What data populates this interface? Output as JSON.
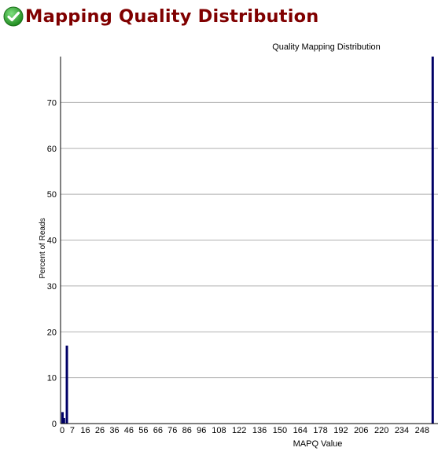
{
  "page": {
    "title": "Mapping Quality Distribution",
    "status_icon": "check-icon",
    "status_color": "#2e9e2e",
    "title_color": "#800000"
  },
  "chart_data": {
    "type": "bar",
    "title": "Quality Mapping Distribution",
    "xlabel": "MAPQ Value",
    "ylabel": "Percent of Reads",
    "bar_color": "#000066",
    "grid": true,
    "xlim": [
      0,
      260
    ],
    "ylim": [
      0,
      80
    ],
    "yticks": [
      0,
      10,
      20,
      30,
      40,
      50,
      60,
      70
    ],
    "xticks": [
      0,
      7,
      16,
      26,
      36,
      46,
      56,
      66,
      76,
      86,
      96,
      108,
      122,
      136,
      150,
      164,
      178,
      192,
      206,
      220,
      234,
      248
    ],
    "x": [
      0,
      1,
      3,
      255
    ],
    "values": [
      2.5,
      1.2,
      17.0,
      80.0
    ]
  }
}
